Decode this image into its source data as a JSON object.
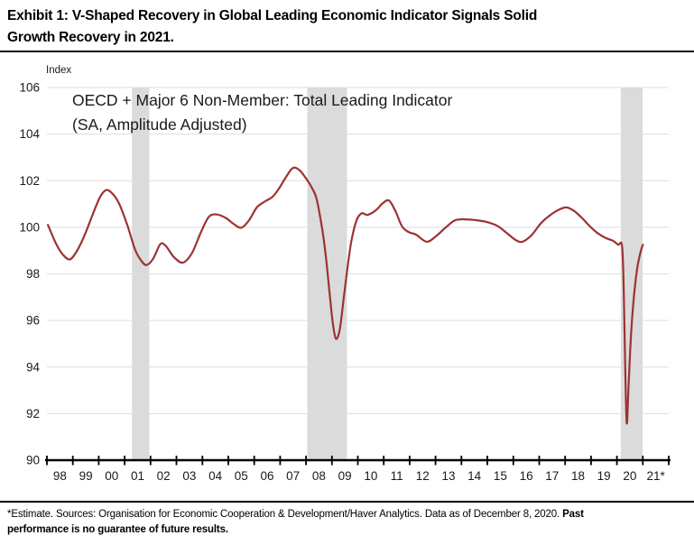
{
  "header": {
    "title_line1": "Exhibit 1: V-Shaped Recovery in Global Leading Economic Indicator Signals Solid",
    "title_line2": "Growth Recovery in 2021."
  },
  "chart": {
    "index_label": "Index",
    "title_line1": "OECD + Major 6 Non-Member: Total Leading Indicator",
    "title_line2": "(SA, Amplitude Adjusted)"
  },
  "footnote": {
    "line1_regular": "*Estimate. Sources: Organisation for Economic Cooperation & Development/Haver Analytics. Data as of December 8, 2020. ",
    "line1_bold": "Past",
    "line2_bold": "performance is no guarantee of future results."
  },
  "chart_data": {
    "type": "line",
    "title": "OECD + Major 6 Non-Member: Total Leading Indicator (SA, Amplitude Adjusted)",
    "xlabel": "",
    "ylabel": "Index",
    "grid": true,
    "legend_position": "none",
    "x_range": [
      1998,
      2022
    ],
    "y_range": [
      90,
      106
    ],
    "y_ticks": [
      106,
      104,
      102,
      100,
      98,
      96,
      94,
      92,
      90
    ],
    "x_tick_labels": [
      "98",
      "99",
      "00",
      "01",
      "02",
      "03",
      "04",
      "05",
      "06",
      "07",
      "08",
      "09",
      "10",
      "11",
      "12",
      "13",
      "14",
      "15",
      "16",
      "17",
      "18",
      "19",
      "20",
      "21*"
    ],
    "line_color": "#9C3332",
    "grid_color": "#DEDEDE",
    "axis_color": "#000000",
    "text_color": "#1a1a1a",
    "recession_band_color": "#DBDBDB",
    "recession_bands": [
      [
        2001.28,
        2001.95
      ],
      [
        2008.05,
        2009.58
      ],
      [
        2020.15,
        2020.99
      ]
    ],
    "series": [
      {
        "name": "OECD + Major 6 Non-Member: Total Leading Indicator (SA, Amplitude Adjusted)",
        "points": [
          [
            1998.04,
            100.1
          ],
          [
            1998.35,
            99.3
          ],
          [
            1998.6,
            98.85
          ],
          [
            1998.88,
            98.62
          ],
          [
            1999.15,
            98.97
          ],
          [
            1999.45,
            99.65
          ],
          [
            1999.75,
            100.5
          ],
          [
            2000.05,
            101.3
          ],
          [
            2000.3,
            101.6
          ],
          [
            2000.55,
            101.42
          ],
          [
            2000.8,
            100.98
          ],
          [
            2001.1,
            100.1
          ],
          [
            2001.4,
            99.05
          ],
          [
            2001.65,
            98.55
          ],
          [
            2001.85,
            98.38
          ],
          [
            2002.1,
            98.65
          ],
          [
            2002.38,
            99.28
          ],
          [
            2002.6,
            99.18
          ],
          [
            2002.9,
            98.72
          ],
          [
            2003.25,
            98.48
          ],
          [
            2003.6,
            98.9
          ],
          [
            2003.95,
            99.8
          ],
          [
            2004.25,
            100.45
          ],
          [
            2004.55,
            100.55
          ],
          [
            2004.9,
            100.4
          ],
          [
            2005.2,
            100.15
          ],
          [
            2005.5,
            99.98
          ],
          [
            2005.8,
            100.3
          ],
          [
            2006.1,
            100.85
          ],
          [
            2006.4,
            101.1
          ],
          [
            2006.7,
            101.3
          ],
          [
            2006.95,
            101.65
          ],
          [
            2007.25,
            102.2
          ],
          [
            2007.5,
            102.55
          ],
          [
            2007.75,
            102.45
          ],
          [
            2008.0,
            102.1
          ],
          [
            2008.2,
            101.75
          ],
          [
            2008.4,
            101.25
          ],
          [
            2008.6,
            100.1
          ],
          [
            2008.75,
            98.9
          ],
          [
            2008.9,
            97.3
          ],
          [
            2009.02,
            96.0
          ],
          [
            2009.15,
            95.22
          ],
          [
            2009.3,
            95.6
          ],
          [
            2009.45,
            96.9
          ],
          [
            2009.6,
            98.25
          ],
          [
            2009.75,
            99.4
          ],
          [
            2009.95,
            100.3
          ],
          [
            2010.15,
            100.6
          ],
          [
            2010.35,
            100.53
          ],
          [
            2010.55,
            100.62
          ],
          [
            2010.75,
            100.78
          ],
          [
            2010.95,
            101.02
          ],
          [
            2011.2,
            101.15
          ],
          [
            2011.45,
            100.7
          ],
          [
            2011.7,
            100.05
          ],
          [
            2011.95,
            99.8
          ],
          [
            2012.25,
            99.68
          ],
          [
            2012.65,
            99.38
          ],
          [
            2013.0,
            99.6
          ],
          [
            2013.4,
            100.0
          ],
          [
            2013.75,
            100.3
          ],
          [
            2014.15,
            100.34
          ],
          [
            2014.6,
            100.3
          ],
          [
            2015.0,
            100.22
          ],
          [
            2015.4,
            100.05
          ],
          [
            2015.75,
            99.75
          ],
          [
            2016.1,
            99.45
          ],
          [
            2016.35,
            99.38
          ],
          [
            2016.7,
            99.65
          ],
          [
            2017.05,
            100.15
          ],
          [
            2017.4,
            100.5
          ],
          [
            2017.75,
            100.75
          ],
          [
            2018.05,
            100.85
          ],
          [
            2018.35,
            100.7
          ],
          [
            2018.65,
            100.4
          ],
          [
            2018.95,
            100.05
          ],
          [
            2019.25,
            99.75
          ],
          [
            2019.55,
            99.55
          ],
          [
            2019.85,
            99.42
          ],
          [
            2020.05,
            99.25
          ],
          [
            2020.2,
            99.17
          ],
          [
            2020.27,
            97.0
          ],
          [
            2020.32,
            94.0
          ],
          [
            2020.38,
            91.58
          ],
          [
            2020.45,
            93.2
          ],
          [
            2020.55,
            95.5
          ],
          [
            2020.68,
            97.3
          ],
          [
            2020.8,
            98.35
          ],
          [
            2020.92,
            98.97
          ],
          [
            2021.0,
            99.25
          ]
        ]
      }
    ]
  }
}
